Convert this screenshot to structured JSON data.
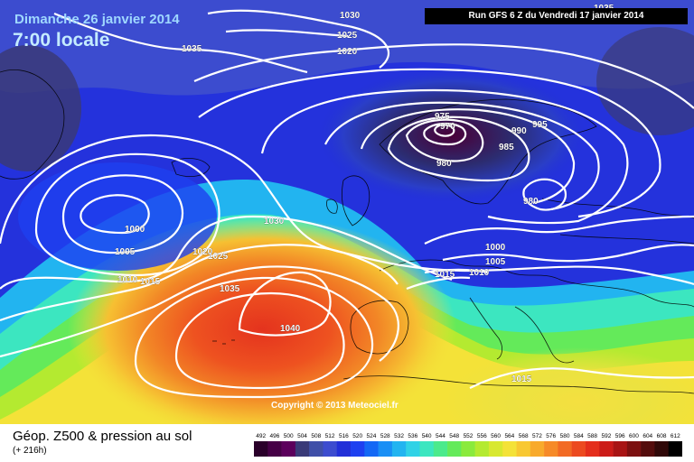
{
  "header": {
    "date": "Dimanche 26 janvier 2014",
    "time": "7:00 locale",
    "run": "Run GFS 6 Z du Vendredi 17 janvier 2014"
  },
  "footer": {
    "copyright": "Copyright © 2013 Meteociel.fr",
    "legend_title": "Géop. Z500 & pression au sol",
    "legend_subtitle": "(+ 216h)"
  },
  "colors": {
    "contour": "#ffffff",
    "land_outline": "#000000",
    "sea_background": "#1f2fe0"
  },
  "legend_scale": {
    "values": [
      "492",
      "496",
      "500",
      "504",
      "508",
      "512",
      "516",
      "520",
      "524",
      "528",
      "532",
      "536",
      "540",
      "544",
      "548",
      "552",
      "556",
      "560",
      "564",
      "568",
      "572",
      "576",
      "580",
      "584",
      "588",
      "592",
      "596",
      "600",
      "604",
      "608",
      "612"
    ],
    "colors": [
      "#2a002a",
      "#460046",
      "#5c005c",
      "#3a3a78",
      "#3f4fa8",
      "#3c4ccf",
      "#2230d8",
      "#1e40f0",
      "#1468f5",
      "#1a8ff5",
      "#22b4f0",
      "#30d2e6",
      "#3ce6c0",
      "#4bea8c",
      "#64ea5a",
      "#8aea3c",
      "#b4ea30",
      "#d8e830",
      "#f4e238",
      "#f8c832",
      "#f8aa2c",
      "#f68a28",
      "#f26a24",
      "#ec4a20",
      "#e42e1c",
      "#cc1c18",
      "#a81414",
      "#7c1010",
      "#540c0c",
      "#300808",
      "#000000"
    ]
  },
  "isobars": [
    {
      "label": "1030",
      "value": 1030
    },
    {
      "label": "1035",
      "value": 1035
    },
    {
      "label": "1025",
      "value": 1025
    },
    {
      "label": "1020",
      "value": 1020
    },
    {
      "label": "975",
      "value": 975
    },
    {
      "label": "970",
      "value": 970
    },
    {
      "label": "990",
      "value": 990
    },
    {
      "label": "995",
      "value": 995
    },
    {
      "label": "985",
      "value": 985
    },
    {
      "label": "980",
      "value": 980
    },
    {
      "label": "980",
      "value": 980
    },
    {
      "label": "1035",
      "value": 1035
    },
    {
      "label": "1000",
      "value": 1000
    },
    {
      "label": "1005",
      "value": 1005
    },
    {
      "label": "1010",
      "value": 1010
    },
    {
      "label": "1015",
      "value": 1015
    },
    {
      "label": "1030",
      "value": 1030
    },
    {
      "label": "1020",
      "value": 1020
    },
    {
      "label": "1025",
      "value": 1025
    },
    {
      "label": "1035",
      "value": 1035
    },
    {
      "label": "1040",
      "value": 1040
    },
    {
      "label": "1000",
      "value": 1000
    },
    {
      "label": "1005",
      "value": 1005
    },
    {
      "label": "1015",
      "value": 1015
    },
    {
      "label": "1010",
      "value": 1010
    },
    {
      "label": "1015",
      "value": 1015
    }
  ]
}
